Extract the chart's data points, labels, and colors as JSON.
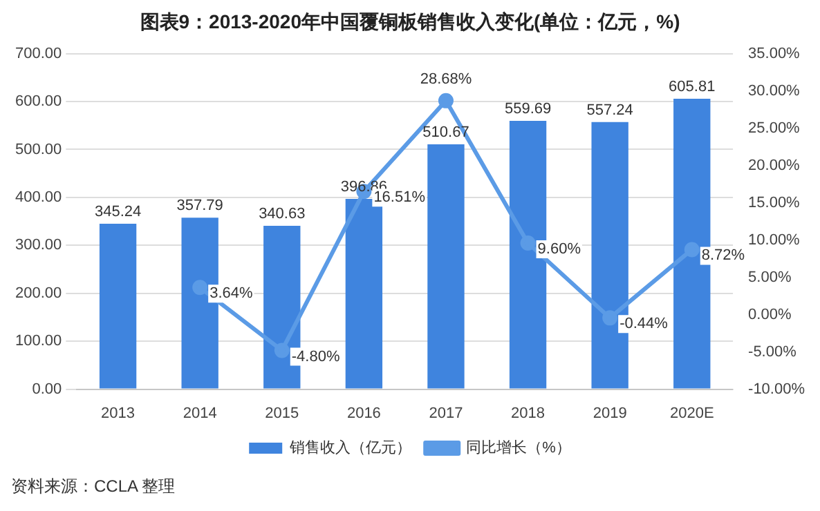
{
  "chart_data": {
    "type": "bar",
    "title": "图表9：2013-2020年中国覆铜板销售收入变化(单位：亿元，%)",
    "categories": [
      "2013",
      "2014",
      "2015",
      "2016",
      "2017",
      "2018",
      "2019",
      "2020E"
    ],
    "series": [
      {
        "name": "销售收入（亿元）",
        "color": "#3f84de",
        "values": [
          345.24,
          357.79,
          340.63,
          396.86,
          510.67,
          559.69,
          557.24,
          605.81
        ],
        "value_labels": [
          "345.24",
          "357.79",
          "340.63",
          "396.86",
          "510.67",
          "559.69",
          "557.24",
          "605.81"
        ]
      },
      {
        "name": "同比增长（%）",
        "type": "line",
        "axis": "y2",
        "color": "#5b9be6",
        "values": [
          null,
          3.64,
          -4.8,
          16.51,
          28.68,
          9.6,
          -0.44,
          8.72
        ],
        "value_labels": [
          null,
          "3.64%",
          "-4.80%",
          "16.51%",
          "28.68%",
          "9.60%",
          "-0.44%",
          "8.72%"
        ]
      }
    ],
    "ylim": [
      0,
      700
    ],
    "yticks": [
      {
        "value": 0,
        "label": "0.00"
      },
      {
        "value": 100,
        "label": "100.00"
      },
      {
        "value": 200,
        "label": "200.00"
      },
      {
        "value": 300,
        "label": "300.00"
      },
      {
        "value": 400,
        "label": "400.00"
      },
      {
        "value": 500,
        "label": "500.00"
      },
      {
        "value": 600,
        "label": "600.00"
      },
      {
        "value": 700,
        "label": "700.00"
      }
    ],
    "y2lim": [
      -10,
      35
    ],
    "y2ticks": [
      {
        "value": -10,
        "label": "-10.00%"
      },
      {
        "value": -5,
        "label": "-5.00%"
      },
      {
        "value": 0,
        "label": "0.00%"
      },
      {
        "value": 5,
        "label": "5.00%"
      },
      {
        "value": 10,
        "label": "10.00%"
      },
      {
        "value": 15,
        "label": "15.00%"
      },
      {
        "value": 20,
        "label": "20.00%"
      },
      {
        "value": 25,
        "label": "25.00%"
      },
      {
        "value": 30,
        "label": "30.00%"
      },
      {
        "value": 35,
        "label": "35.00%"
      }
    ],
    "grid": "y",
    "legend": "bottom",
    "marker": "circle",
    "line_style": "solid",
    "annotations": [
      "资料来源：CCLA 整理"
    ]
  }
}
